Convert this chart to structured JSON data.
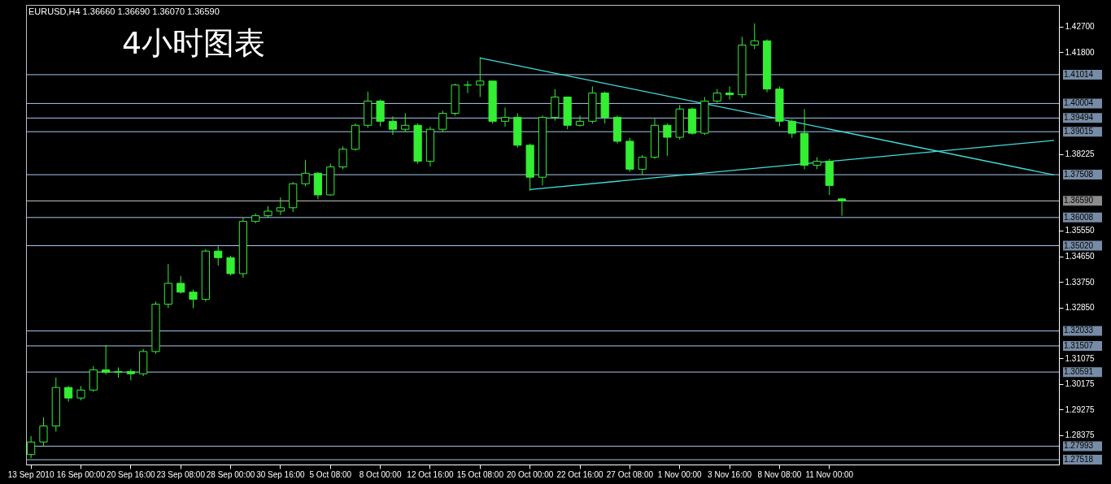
{
  "chart_data": {
    "type": "candlestick",
    "title": "4小时图表",
    "annotations": [
      "EURUSD,H4 1.36660 1.36690 1.36070 1.36590"
    ],
    "color": "#33ee33",
    "categories": [
      "13 Sep 2010",
      null,
      null,
      null,
      "16 Sep 00:00",
      null,
      null,
      null,
      "20 Sep 16:00",
      null,
      null,
      null,
      "23 Sep 08:00",
      null,
      null,
      null,
      "28 Sep 00:00",
      null,
      null,
      null,
      "30 Sep 16:00",
      null,
      null,
      null,
      "5 Oct 08:00",
      null,
      null,
      null,
      "8 Oct 00:00",
      null,
      null,
      null,
      "12 Oct 16:00",
      null,
      null,
      null,
      "15 Oct 08:00",
      null,
      null,
      null,
      "20 Oct 00:00",
      null,
      null,
      null,
      "22 Oct 16:00",
      null,
      null,
      null,
      "27 Oct 08:00",
      null,
      null,
      null,
      "1 Nov 00:00",
      null,
      null,
      null,
      "3 Nov 16:00",
      null,
      null,
      null,
      "8 Nov 08:00",
      null,
      null,
      null,
      "11 Nov 00:00",
      null,
      null,
      null,
      null,
      null,
      null,
      null,
      null,
      null,
      null,
      null,
      null,
      null,
      null,
      null,
      null,
      null,
      null
    ],
    "ohlc": [
      [
        1.277,
        1.2835,
        1.2757,
        1.2814
      ],
      [
        1.2814,
        1.29,
        1.28,
        1.287
      ],
      [
        1.287,
        1.304,
        1.285,
        1.3005
      ],
      [
        1.3005,
        1.301,
        1.2955,
        1.2968
      ],
      [
        1.2968,
        1.301,
        1.296,
        1.2996
      ],
      [
        1.2996,
        1.308,
        1.299,
        1.3067
      ],
      [
        1.3067,
        1.3154,
        1.305,
        1.3058
      ],
      [
        1.3058,
        1.3075,
        1.3039,
        1.3061
      ],
      [
        1.3061,
        1.307,
        1.303,
        1.3053
      ],
      [
        1.3053,
        1.314,
        1.3045,
        1.3131
      ],
      [
        1.3131,
        1.3306,
        1.3123,
        1.3297
      ],
      [
        1.3297,
        1.3438,
        1.3283,
        1.337
      ],
      [
        1.337,
        1.3396,
        1.3334,
        1.3339
      ],
      [
        1.3339,
        1.3348,
        1.3283,
        1.3314
      ],
      [
        1.3314,
        1.349,
        1.3306,
        1.3483
      ],
      [
        1.3483,
        1.35,
        1.3432,
        1.346
      ],
      [
        1.346,
        1.3466,
        1.3398,
        1.3404
      ],
      [
        1.3404,
        1.36,
        1.339,
        1.3587
      ],
      [
        1.3587,
        1.3615,
        1.3581,
        1.3607
      ],
      [
        1.3607,
        1.364,
        1.36,
        1.3623
      ],
      [
        1.3623,
        1.3671,
        1.3609,
        1.3635
      ],
      [
        1.3635,
        1.3725,
        1.362,
        1.3719
      ],
      [
        1.3719,
        1.3803,
        1.371,
        1.3756
      ],
      [
        1.3756,
        1.376,
        1.3665,
        1.368
      ],
      [
        1.368,
        1.379,
        1.3677,
        1.3778
      ],
      [
        1.3778,
        1.385,
        1.377,
        1.384
      ],
      [
        1.384,
        1.393,
        1.3835,
        1.3924
      ],
      [
        1.3924,
        1.4042,
        1.3915,
        1.4009
      ],
      [
        1.4009,
        1.4014,
        1.392,
        1.3938
      ],
      [
        1.3938,
        1.3955,
        1.389,
        1.391
      ],
      [
        1.391,
        1.3966,
        1.39,
        1.3924
      ],
      [
        1.3924,
        1.393,
        1.3789,
        1.3798
      ],
      [
        1.3798,
        1.3919,
        1.378,
        1.391
      ],
      [
        1.391,
        1.3975,
        1.39,
        1.3966
      ],
      [
        1.3966,
        1.407,
        1.3958,
        1.4065
      ],
      [
        1.4065,
        1.4079,
        1.4037,
        1.4065
      ],
      [
        1.4065,
        1.4163,
        1.4023,
        1.4079
      ],
      [
        1.4079,
        1.4079,
        1.393,
        1.3938
      ],
      [
        1.3938,
        1.3986,
        1.3919,
        1.3952
      ],
      [
        1.3952,
        1.3966,
        1.3846,
        1.3854
      ],
      [
        1.3854,
        1.386,
        1.3694,
        1.3742
      ],
      [
        1.3742,
        1.3958,
        1.3713,
        1.3952
      ],
      [
        1.3952,
        1.4051,
        1.394,
        1.4023
      ],
      [
        1.4023,
        1.4023,
        1.391,
        1.3924
      ],
      [
        1.3924,
        1.3958,
        1.3919,
        1.3938
      ],
      [
        1.3938,
        1.406,
        1.393,
        1.4037
      ],
      [
        1.4037,
        1.4042,
        1.393,
        1.3952
      ],
      [
        1.3952,
        1.3958,
        1.386,
        1.3868
      ],
      [
        1.3868,
        1.388,
        1.3761,
        1.377
      ],
      [
        1.377,
        1.382,
        1.375,
        1.3812
      ],
      [
        1.3812,
        1.3947,
        1.3806,
        1.3924
      ],
      [
        1.3924,
        1.393,
        1.3817,
        1.3882
      ],
      [
        1.3882,
        1.3995,
        1.3874,
        1.3981
      ],
      [
        1.3981,
        1.3986,
        1.3891,
        1.3896
      ],
      [
        1.3896,
        1.4023,
        1.389,
        1.4009
      ],
      [
        1.4009,
        1.4051,
        1.4003,
        1.4037
      ],
      [
        1.4037,
        1.406,
        1.4014,
        1.4031
      ],
      [
        1.4031,
        1.4234,
        1.402,
        1.4205
      ],
      [
        1.4205,
        1.4281,
        1.4191,
        1.422
      ],
      [
        1.422,
        1.4225,
        1.404,
        1.4051
      ],
      [
        1.4051,
        1.406,
        1.392,
        1.3938
      ],
      [
        1.3938,
        1.3945,
        1.388,
        1.3896
      ],
      [
        1.3896,
        1.3981,
        1.377,
        1.3784
      ],
      [
        1.3784,
        1.3812,
        1.377,
        1.3798
      ],
      [
        1.3798,
        1.3806,
        1.368,
        1.3713
      ],
      [
        1.3666,
        1.3669,
        1.3607,
        1.3659
      ],
      null,
      null,
      null,
      null,
      null,
      null,
      null,
      null,
      null,
      null,
      null,
      null,
      null,
      null,
      null,
      null,
      null
    ],
    "series": [
      {
        "type": "line",
        "color": "#40dede",
        "values": [
          null,
          null,
          null,
          null,
          null,
          null,
          null,
          null,
          null,
          null,
          null,
          null,
          null,
          null,
          null,
          null,
          null,
          null,
          null,
          null,
          null,
          null,
          null,
          null,
          null,
          null,
          null,
          null,
          null,
          null,
          null,
          null,
          null,
          null,
          null,
          null,
          1.416,
          null,
          null,
          null,
          null,
          null,
          null,
          null,
          null,
          null,
          null,
          null,
          null,
          null,
          null,
          null,
          null,
          null,
          null,
          null,
          null,
          null,
          null,
          null,
          null,
          null,
          null,
          null,
          null,
          null,
          null,
          null,
          null,
          null,
          null,
          null,
          null,
          null,
          null,
          null,
          null,
          null,
          null,
          null,
          null,
          null,
          1.375
        ]
      },
      {
        "type": "line",
        "color": "#40dede",
        "values": [
          null,
          null,
          null,
          null,
          null,
          null,
          null,
          null,
          null,
          null,
          null,
          null,
          null,
          null,
          null,
          null,
          null,
          null,
          null,
          null,
          null,
          null,
          null,
          null,
          null,
          null,
          null,
          null,
          null,
          null,
          null,
          null,
          null,
          null,
          null,
          null,
          null,
          null,
          null,
          null,
          1.3699,
          null,
          null,
          null,
          null,
          null,
          null,
          null,
          null,
          null,
          null,
          null,
          null,
          null,
          null,
          null,
          null,
          null,
          null,
          null,
          null,
          null,
          null,
          null,
          null,
          null,
          null,
          null,
          null,
          null,
          null,
          null,
          null,
          null,
          null,
          null,
          null,
          null,
          null,
          null,
          null,
          null,
          1.3871
        ]
      }
    ],
    "ylim": [
      1.2735,
      1.4346
    ],
    "yticks": [
      {
        "value": 1.427,
        "label": "1.42700"
      },
      {
        "value": 1.418,
        "label": "1.41800"
      },
      {
        "value": 1.38225,
        "label": "1.38225"
      },
      {
        "value": 1.3555,
        "label": "1.35550"
      },
      {
        "value": 1.3465,
        "label": "1.34650"
      },
      {
        "value": 1.3375,
        "label": "1.33750"
      },
      {
        "value": 1.3285,
        "label": "1.32850"
      },
      {
        "value": 1.31075,
        "label": "1.31075"
      },
      {
        "value": 1.30175,
        "label": "1.30175"
      },
      {
        "value": 1.29275,
        "label": "1.29275"
      },
      {
        "value": 1.28375,
        "label": "1.28375"
      }
    ],
    "ref_lines": [
      {
        "axis": "y",
        "value": 1.41014,
        "label": "1.41014",
        "color": "#a8c8ec"
      },
      {
        "axis": "y",
        "value": 1.40004,
        "label": "1.40004",
        "color": "#a8c8ec"
      },
      {
        "axis": "y",
        "value": 1.39494,
        "label": "1.39494",
        "color": "#a8c8ec"
      },
      {
        "axis": "y",
        "value": 1.39015,
        "label": "1.39015",
        "color": "#a8c8ec"
      },
      {
        "axis": "y",
        "value": 1.37508,
        "label": "1.37508",
        "color": "#a8c8ec"
      },
      {
        "axis": "y",
        "value": 1.3659,
        "label": "1.36590",
        "color": "#c8c8c8"
      },
      {
        "axis": "y",
        "value": 1.36008,
        "label": "1.36008",
        "color": "#a8c8ec"
      },
      {
        "axis": "y",
        "value": 1.3502,
        "label": "1.35020",
        "color": "#a8c8ec"
      },
      {
        "axis": "y",
        "value": 1.32033,
        "label": "1.32033",
        "color": "#a8c8ec"
      },
      {
        "axis": "y",
        "value": 1.31507,
        "label": "1.31507",
        "color": "#a8c8ec"
      },
      {
        "axis": "y",
        "value": 1.30591,
        "label": "1.30591",
        "color": "#a8c8ec"
      },
      {
        "axis": "y",
        "value": 1.27993,
        "label": "1.27993",
        "color": "#a8c8ec"
      },
      {
        "axis": "y",
        "value": 1.27518,
        "label": "1.27518",
        "color": "#a8c8ec"
      }
    ]
  }
}
